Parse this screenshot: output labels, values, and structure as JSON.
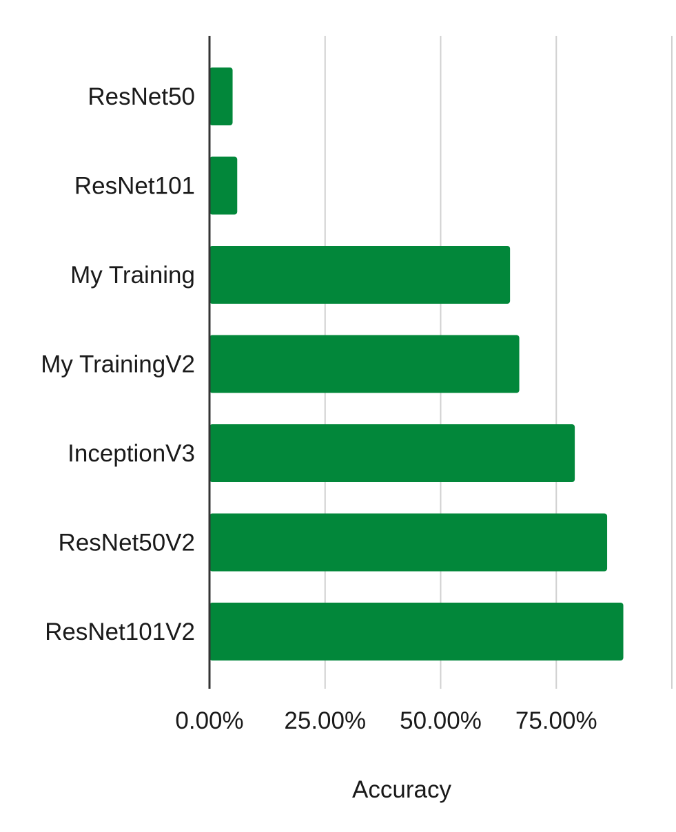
{
  "chart_data": {
    "type": "bar",
    "orientation": "horizontal",
    "categories": [
      "ResNet50",
      "ResNet101",
      "My Training",
      "My TrainingV2",
      "InceptionV3",
      "ResNet50V2",
      "ResNet101V2"
    ],
    "values": [
      0.05,
      0.06,
      0.65,
      0.67,
      0.79,
      0.86,
      0.895
    ],
    "xlim": [
      0,
      1
    ],
    "xticks": [
      0,
      0.25,
      0.5,
      0.75,
      1.0
    ],
    "xtick_labels": [
      "0.00%",
      "25.00%",
      "50.00%",
      "75.00%",
      ""
    ],
    "xlabel": "Accuracy",
    "ylabel": "",
    "title": "",
    "grid": true,
    "bar_color": "#02873a",
    "grid_color": "#d0d0d0",
    "axis_color": "#333333"
  }
}
